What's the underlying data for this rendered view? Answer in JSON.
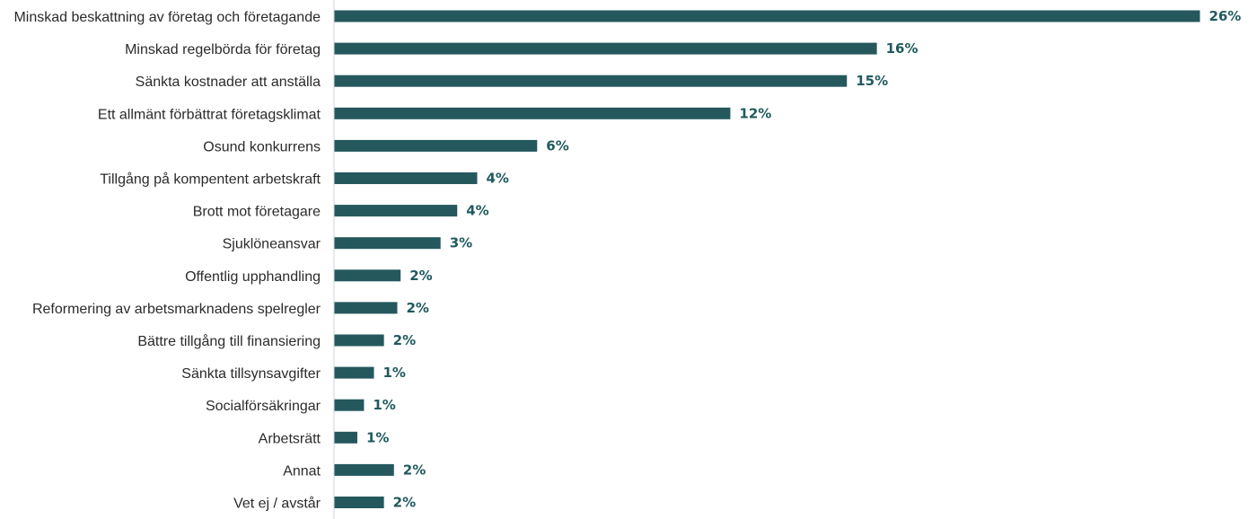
{
  "chart_data": {
    "type": "bar",
    "orientation": "horizontal",
    "title": "",
    "xlabel": "",
    "ylabel": "",
    "grid": false,
    "legend": "none",
    "bar_color": "#24585d",
    "label_color": "#1f5a5e",
    "axis_color": "#cfd3d4",
    "categories": [
      "Minskad beskattning av företag och företagande",
      "Minskad regelbörda för företag",
      "Sänkta kostnader att anställa",
      "Ett allmänt förbättrat företagsklimat",
      "Osund konkurrens",
      "Tillgång på kompentent arbetskraft",
      "Brott mot företagare",
      "Sjuklöneansvar",
      "Offentlig upphandling",
      "Reformering av arbetsmarknadens spelregler",
      "Bättre tillgång till finansiering",
      "Sänkta tillsynsavgifter",
      "Socialförsäkringar",
      "Arbetsrätt",
      "Annat",
      "Vet ej / avstår"
    ],
    "values": [
      26.0,
      16.3,
      15.4,
      11.9,
      6.1,
      4.3,
      3.7,
      3.2,
      2.0,
      1.9,
      1.5,
      1.2,
      0.9,
      0.7,
      1.8,
      1.5
    ],
    "data_labels": [
      "26%",
      "16%",
      "15%",
      "12%",
      "6%",
      "4%",
      "4%",
      "3%",
      "2%",
      "2%",
      "2%",
      "1%",
      "1%",
      "1%",
      "2%",
      "2%"
    ],
    "xlim": [
      0,
      26.5
    ]
  }
}
